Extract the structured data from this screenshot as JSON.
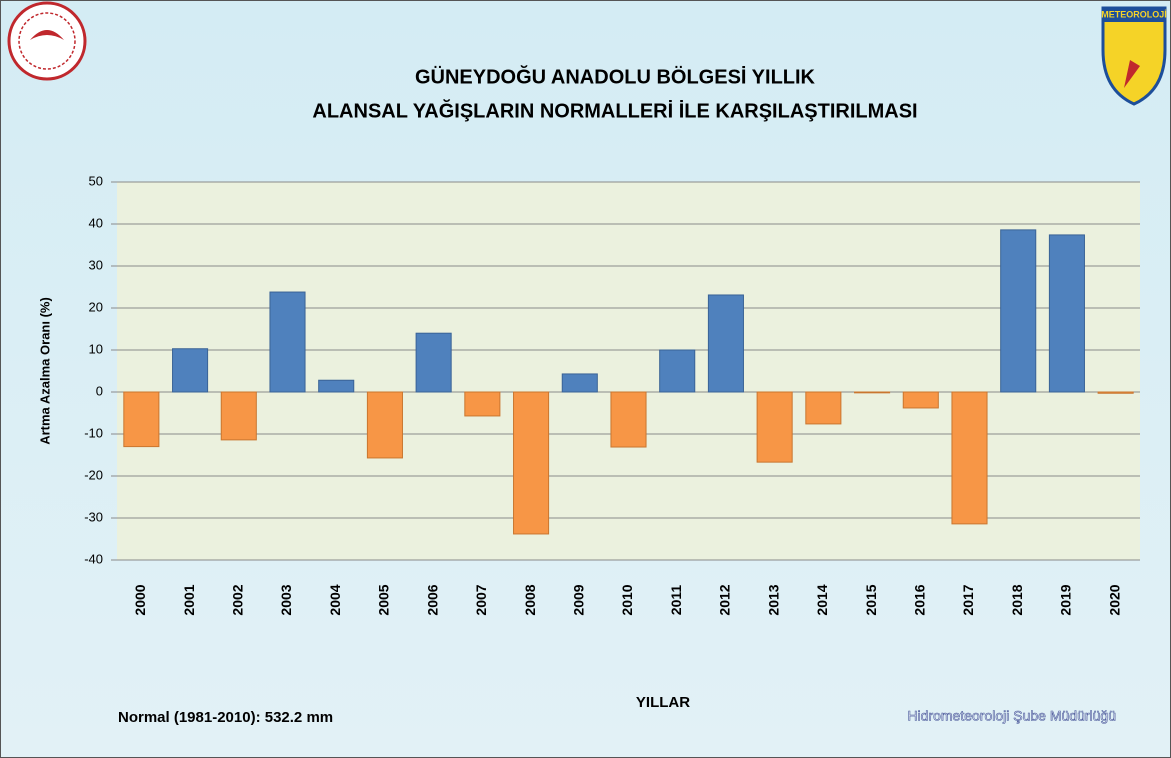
{
  "chart_data": {
    "type": "bar",
    "title": "GÜNEYDOĞU ANADOLU BÖLGESİ  YILLIK",
    "subtitle": "ALANSAL YAĞIŞLARIN NORMALLERİ İLE KARŞILAŞTIRILMASI",
    "y_label": "Artma Azalma Oranı (%)",
    "x_label": "YILLAR",
    "note": "Normal (1981-2010): 532.2 mm",
    "credit": "Hidrometeoroloji Şube Müdürlüğü",
    "logo_text": "METEOROLOJİ",
    "categories": [
      "2000",
      "2001",
      "2002",
      "2003",
      "2004",
      "2005",
      "2006",
      "2007",
      "2008",
      "2009",
      "2010",
      "2011",
      "2012",
      "2013",
      "2014",
      "2015",
      "2016",
      "2017",
      "2018",
      "2019",
      "2020"
    ],
    "values": [
      -13,
      10.3,
      -11.4,
      23.8,
      2.8,
      -15.7,
      14,
      -5.7,
      -33.8,
      4.3,
      -13.1,
      10,
      23.1,
      -16.7,
      -7.6,
      -0.2,
      -3.8,
      -31.4,
      38.6,
      37.4,
      -0.3
    ],
    "colors": {
      "positive": "#4f81bd",
      "negative": "#f79646"
    },
    "ylim": [
      -40,
      50
    ],
    "yticks": [
      -40,
      -30,
      -20,
      -10,
      0,
      10,
      20,
      30,
      40,
      50
    ],
    "grid": true
  }
}
